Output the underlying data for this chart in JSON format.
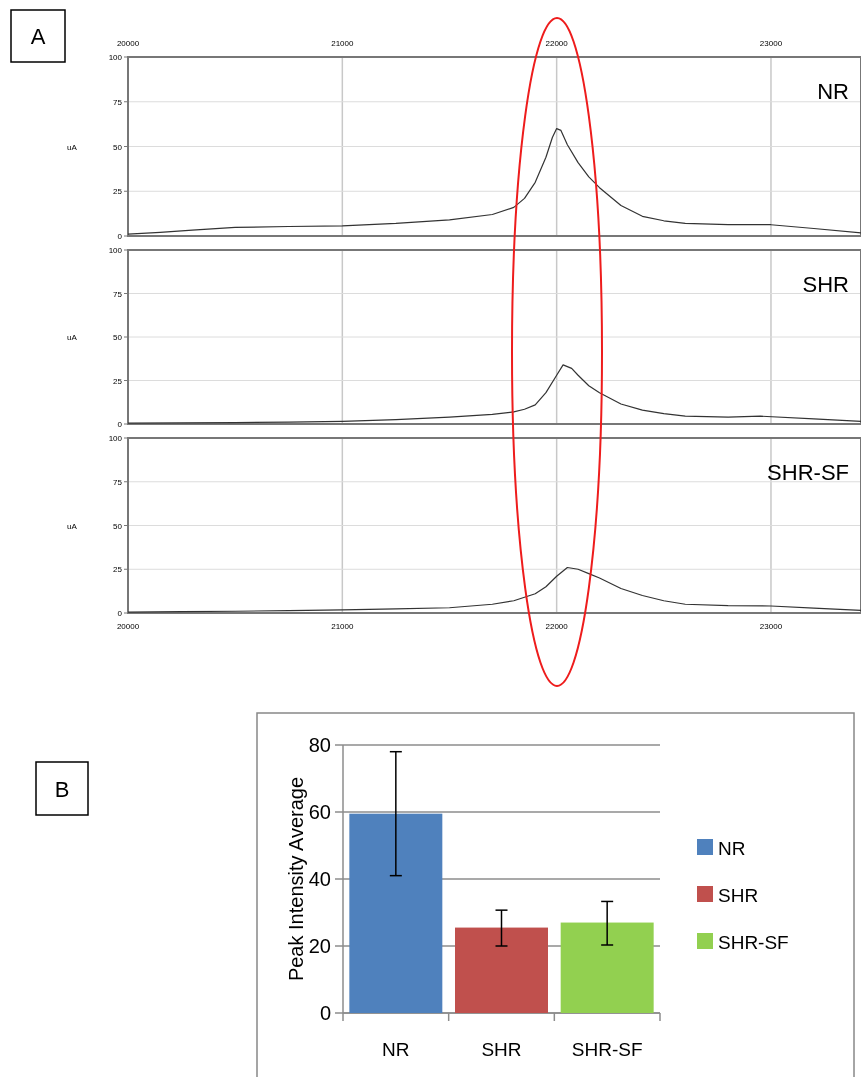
{
  "chart_data": [
    {
      "type": "line",
      "ylabel": "uA",
      "annotations": [
        "A"
      ],
      "xlim": [
        20000,
        23420
      ],
      "xticks": [
        20000,
        21000,
        22000,
        23000
      ],
      "x2lim": [
        20000,
        23420
      ],
      "x2ticks": [
        20000,
        21000,
        22000,
        23000
      ],
      "tick_labels": "y",
      "ylim": [
        0,
        100
      ],
      "yticks": [
        0,
        25,
        50,
        75,
        100
      ],
      "grid": true,
      "x": [
        20000,
        20150,
        20300,
        20500,
        20750,
        21000,
        21250,
        21500,
        21700,
        21800,
        21850,
        21900,
        21950,
        21980,
        22000,
        22020,
        22050,
        22100,
        22150,
        22200,
        22300,
        22400,
        22500,
        22600,
        22800,
        23000,
        23200,
        23420
      ],
      "series": [
        {
          "name": "NR",
          "color": "#333333",
          "values": [
            1,
            2,
            3.3,
            4.8,
            5.3,
            5.7,
            7,
            9,
            12,
            16,
            21,
            30,
            44,
            55,
            60,
            59,
            51,
            41,
            33,
            27,
            17,
            11,
            8.5,
            7,
            6.3,
            6.3,
            4.2,
            1.8
          ]
        }
      ]
    },
    {
      "type": "line",
      "ylabel": "uA",
      "xlim": [
        20000,
        23420
      ],
      "xticks": [
        20000,
        21000,
        22000,
        23000
      ],
      "tick_labels": "y",
      "ylim": [
        0,
        100
      ],
      "yticks": [
        0,
        25,
        50,
        75,
        100
      ],
      "grid": true,
      "x": [
        20000,
        20250,
        20500,
        20750,
        21000,
        21250,
        21500,
        21700,
        21800,
        21850,
        21900,
        21950,
        22000,
        22030,
        22070,
        22100,
        22150,
        22200,
        22300,
        22400,
        22500,
        22600,
        22800,
        22950,
        23200,
        23420
      ],
      "series": [
        {
          "name": "SHR",
          "color": "#333333",
          "values": [
            0.5,
            0.6,
            0.8,
            1.1,
            1.5,
            2.5,
            4,
            5.5,
            7,
            8.5,
            11,
            18,
            28,
            34,
            32,
            28,
            22,
            18,
            11.5,
            8,
            6,
            4.5,
            4,
            4.5,
            3,
            1.5
          ]
        }
      ]
    },
    {
      "type": "line",
      "ylabel": "uA",
      "xlim": [
        20000,
        23420
      ],
      "xticks": [
        20000,
        21000,
        22000,
        23000
      ],
      "ylim": [
        0,
        100
      ],
      "yticks": [
        0,
        25,
        50,
        75,
        100
      ],
      "grid": true,
      "x": [
        20000,
        20250,
        20500,
        20750,
        21000,
        21250,
        21500,
        21700,
        21800,
        21900,
        21950,
        22000,
        22050,
        22100,
        22150,
        22200,
        22300,
        22400,
        22500,
        22600,
        22800,
        23000,
        23200,
        23420
      ],
      "series": [
        {
          "name": "SHR-SF",
          "color": "#333333",
          "values": [
            0.5,
            0.8,
            1,
            1.4,
            1.8,
            2.4,
            3,
            5,
            7,
            11,
            15,
            21,
            26,
            25,
            22.5,
            20,
            14,
            10,
            7,
            5,
            4.2,
            4,
            2.8,
            1.5
          ]
        }
      ]
    },
    {
      "type": "bar",
      "ylabel": "Peak Intensity Average",
      "annotations": [
        "B"
      ],
      "categories": [
        "NR",
        "SHR",
        "SHR-SF"
      ],
      "ylim": [
        0,
        80
      ],
      "yticks": [
        0,
        20,
        40,
        60,
        80
      ],
      "grid": "y",
      "legend": "right",
      "series": [
        {
          "name": "NR",
          "color": "#4f81bd",
          "values": [
            59.5,
            null,
            null
          ],
          "errors": [
            [
              41,
              78
            ],
            null,
            null
          ]
        },
        {
          "name": "SHR",
          "color": "#c0504d",
          "values": [
            null,
            25.5,
            null
          ],
          "errors": [
            null,
            [
              20,
              30.7
            ],
            null
          ]
        },
        {
          "name": "SHR-SF",
          "color": "#92d050",
          "values": [
            null,
            null,
            27
          ],
          "errors": [
            null,
            null,
            [
              20.3,
              33.3
            ]
          ]
        }
      ]
    }
  ]
}
